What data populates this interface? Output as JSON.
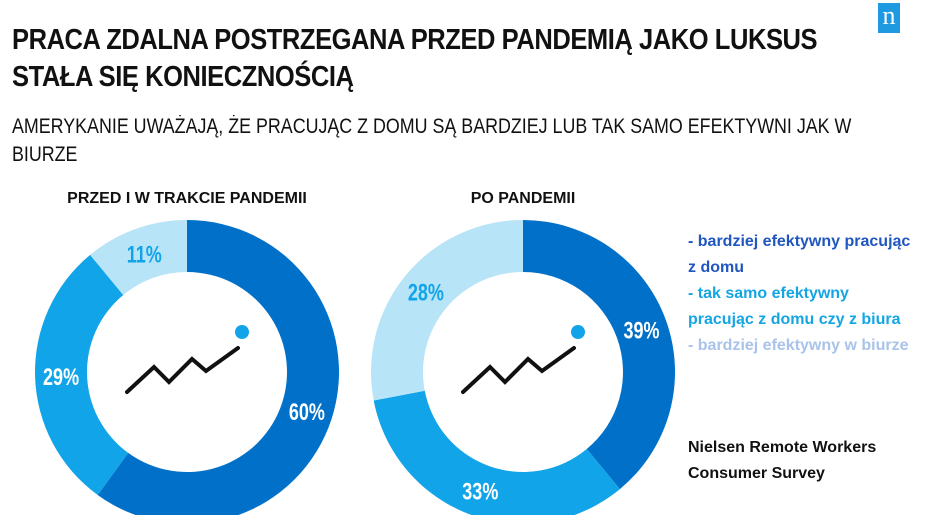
{
  "header": {
    "title_line1": "PRACA ZDALNA POSTRZEGANA PRZED PANDEMIĄ JAKO LUKSUS",
    "title_line2": "STAŁA SIĘ KONIECZNOŚCIĄ",
    "subtitle": "AMERYKANIE UWAŻAJĄ, ŻE PRACUJĄC Z DOMU SĄ BARDZIEJ LUB TAK SAMO EFEKTYWNI JAK W BIURZE",
    "logo_letter": "n"
  },
  "colors": {
    "dark_blue": "#0070c8",
    "mid_blue": "#12a4e8",
    "light_blue": "#b7e4f7",
    "legend_dark": "#1f56c0",
    "legend_mid": "#14a5e4",
    "legend_light": "#a9c3ea"
  },
  "legend": {
    "items": [
      {
        "label": "- bardziej efektywny pracując z domu",
        "color": "#1f56c0"
      },
      {
        "label": "- tak samo efektywny pracując z domu czy z biura",
        "color": "#14a5e4"
      },
      {
        "label": "- bardziej efektywny w biurze",
        "color": "#a9c3ea"
      }
    ]
  },
  "source": {
    "line1": "Nielsen Remote Workers",
    "line2": "Consumer Survey"
  },
  "chart_data": [
    {
      "type": "pie",
      "title": "PRZED I W TRAKCIE PANDEMII",
      "donut": true,
      "categories": [
        "bardziej efektywny pracując z domu",
        "tak samo efektywny pracując z domu czy z biura",
        "bardziej efektywny w biurze"
      ],
      "values": [
        60,
        29,
        11
      ],
      "labels": [
        "60%",
        "29%",
        "11%"
      ],
      "colors": [
        "#0070c8",
        "#12a4e8",
        "#b7e4f7"
      ]
    },
    {
      "type": "pie",
      "title": "PO PANDEMII",
      "donut": true,
      "categories": [
        "bardziej efektywny pracując z domu",
        "tak samo efektywny pracując z domu czy z biura",
        "bardziej efektywny w biurze"
      ],
      "values": [
        39,
        33,
        28
      ],
      "labels": [
        "39%",
        "33%",
        "28%"
      ],
      "colors": [
        "#0070c8",
        "#12a4e8",
        "#b7e4f7"
      ]
    }
  ]
}
